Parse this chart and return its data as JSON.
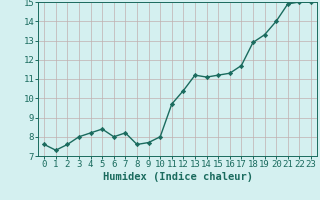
{
  "title": "",
  "xlabel": "Humidex (Indice chaleur)",
  "ylabel": "",
  "x": [
    0,
    1,
    2,
    3,
    4,
    5,
    6,
    7,
    8,
    9,
    10,
    11,
    12,
    13,
    14,
    15,
    16,
    17,
    18,
    19,
    20,
    21,
    22,
    23
  ],
  "y": [
    7.6,
    7.3,
    7.6,
    8.0,
    8.2,
    8.4,
    8.0,
    8.2,
    7.6,
    7.7,
    8.0,
    9.7,
    10.4,
    11.2,
    11.1,
    11.2,
    11.3,
    11.7,
    12.9,
    13.3,
    14.0,
    14.9,
    15.0,
    15.0
  ],
  "line_color": "#1a6b5e",
  "marker": "D",
  "marker_size": 2.2,
  "bg_color": "#d4f0f0",
  "grid_color": "#c0b0b0",
  "xlim": [
    -0.5,
    23.5
  ],
  "ylim": [
    7,
    15
  ],
  "yticks": [
    7,
    8,
    9,
    10,
    11,
    12,
    13,
    14,
    15
  ],
  "xticks": [
    0,
    1,
    2,
    3,
    4,
    5,
    6,
    7,
    8,
    9,
    10,
    11,
    12,
    13,
    14,
    15,
    16,
    17,
    18,
    19,
    20,
    21,
    22,
    23
  ],
  "xlabel_fontsize": 7.5,
  "tick_fontsize": 6.5,
  "tick_color": "#1a6b5e",
  "linewidth": 1.0
}
